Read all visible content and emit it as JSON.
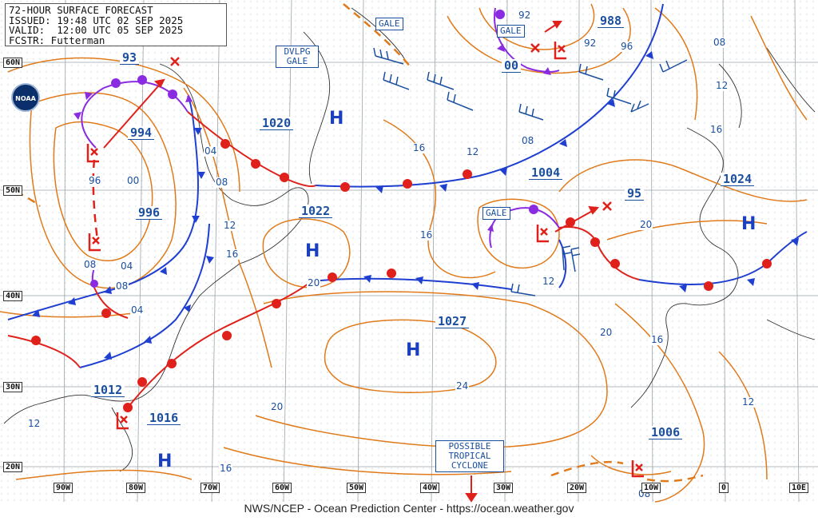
{
  "header": {
    "title": "72-HOUR SURFACE FORECAST",
    "issued": "ISSUED: 19:48 UTC 02 SEP 2025",
    "valid": "VALID:  12:00 UTC 05 SEP 2025",
    "forecaster": "FCSTR: Futterman"
  },
  "logo_text": "NOAA",
  "footer": "NWS/NCEP - Ocean Prediction Center - https://ocean.weather.gov",
  "latitudes": [
    "60N",
    "50N",
    "40N",
    "30N",
    "20N"
  ],
  "longitudes": [
    "90W",
    "80W",
    "70W",
    "60W",
    "50W",
    "40W",
    "30W",
    "20W",
    "10W",
    "0",
    "10E"
  ],
  "pressures": {
    "p93": "93",
    "p994": "994",
    "p996": "996",
    "p1020": "1020",
    "p1022": "1022",
    "p1004": "1004",
    "p988": "988",
    "p00": "00",
    "p95": "95",
    "p1024": "1024",
    "p1027": "1027",
    "p1012": "1012",
    "p1016": "1016",
    "p1006": "1006"
  },
  "labels": {
    "dvlpg_gale": "DVLPG GALE",
    "gale1": "GALE",
    "gale2": "GALE",
    "gale3": "GALE",
    "tropical": "POSSIBLE TROPICAL CYCLONE"
  },
  "isobar_labels": [
    "04",
    "08",
    "12",
    "16",
    "96",
    "00",
    "04",
    "08",
    "16",
    "20",
    "24",
    "20",
    "16",
    "12",
    "08",
    "04",
    "92",
    "92",
    "96",
    "08",
    "12",
    "16",
    "12",
    "20",
    "16",
    "20",
    "12",
    "16",
    "08",
    "12",
    "08"
  ],
  "colors": {
    "isobar": "#e07a1a",
    "cold_front": "#1f3fd0",
    "warm_front": "#e0201a",
    "occluded": "#8a2be2",
    "text_blue": "#1a4fa0",
    "high": "#1a3fbf",
    "low": "#e0201a"
  }
}
